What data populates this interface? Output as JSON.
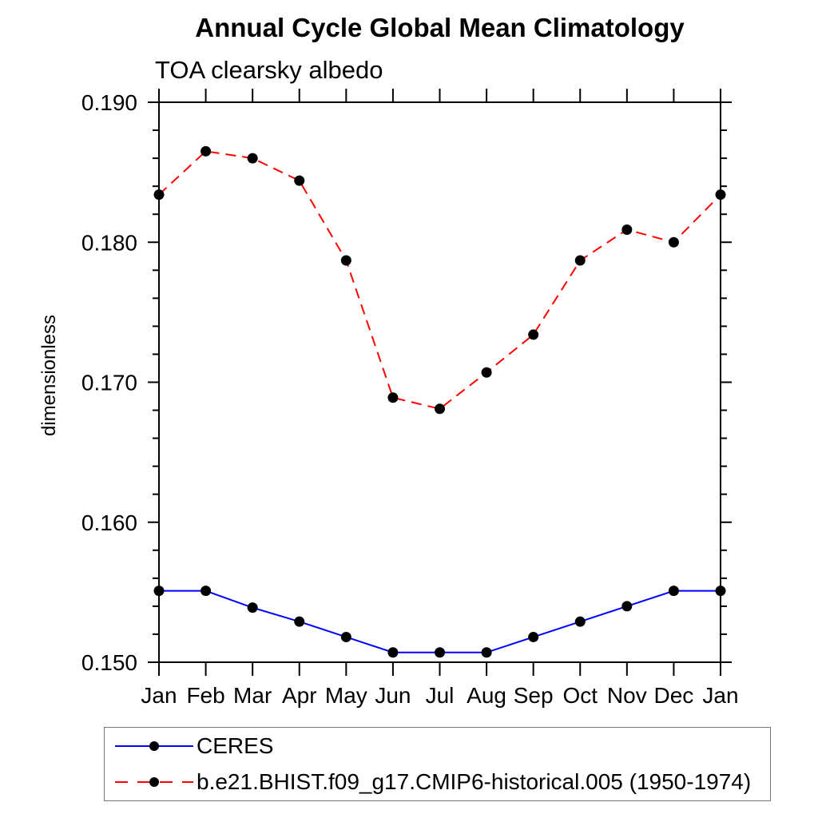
{
  "chart_data": {
    "type": "line",
    "title": "Annual Cycle Global Mean Climatology",
    "subtitle": "TOA clearsky albedo",
    "ylabel": "dimensionless",
    "xlabel": "",
    "categories": [
      "Jan",
      "Feb",
      "Mar",
      "Apr",
      "May",
      "Jun",
      "Jul",
      "Aug",
      "Sep",
      "Oct",
      "Nov",
      "Dec",
      "Jan"
    ],
    "ylim": [
      0.15,
      0.19
    ],
    "ytick_values": [
      0.15,
      0.16,
      0.17,
      0.18,
      0.19
    ],
    "ytick_labels": [
      "0.150",
      "0.160",
      "0.170",
      "0.180",
      "0.190"
    ],
    "ytick_minor_step": 0.002,
    "grid": false,
    "legend_position": "bottom-left",
    "axis_color": "#000000",
    "marker_color": "#000000",
    "series": [
      {
        "name": "CERES",
        "color": "#0000ff",
        "line_style": "solid",
        "marker": "circle",
        "values": [
          0.1551,
          0.1551,
          0.1539,
          0.1529,
          0.1518,
          0.1507,
          0.1507,
          0.1507,
          0.1518,
          0.1529,
          0.154,
          0.1551,
          0.1551
        ]
      },
      {
        "name": "b.e21.BHIST.f09_g17.CMIP6-historical.005 (1950-1974)",
        "color": "#ff0000",
        "line_style": "dashed",
        "marker": "circle",
        "values": [
          0.1834,
          0.1865,
          0.186,
          0.1844,
          0.1787,
          0.1689,
          0.1681,
          0.1707,
          0.1734,
          0.1787,
          0.1809,
          0.18,
          0.1834
        ]
      }
    ]
  }
}
